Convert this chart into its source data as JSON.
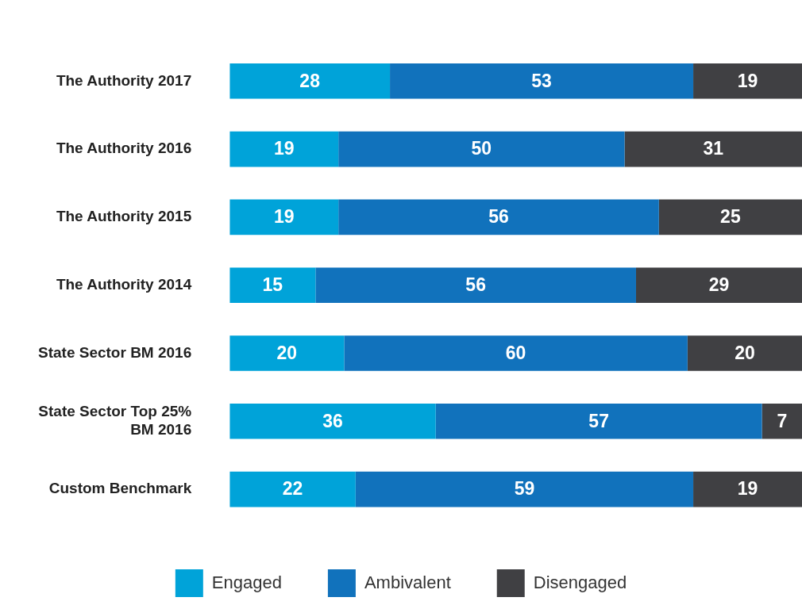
{
  "chart_data": {
    "type": "bar",
    "orientation": "horizontal",
    "stacked": true,
    "categories": [
      "The Authority 2017",
      "The Authority 2016",
      "The Authority 2015",
      "The Authority 2014",
      "State Sector BM 2016",
      "State Sector Top 25% BM 2016",
      "Custom Benchmark"
    ],
    "series": [
      {
        "name": "Engaged",
        "color": "#00a3d9",
        "values": [
          28,
          19,
          19,
          15,
          20,
          36,
          22
        ]
      },
      {
        "name": "Ambivalent",
        "color": "#1172bc",
        "values": [
          53,
          50,
          56,
          56,
          60,
          57,
          59
        ]
      },
      {
        "name": "Disengaged",
        "color": "#404043",
        "values": [
          19,
          31,
          25,
          29,
          20,
          7,
          19
        ]
      }
    ],
    "xlim": [
      0,
      100
    ],
    "tick_labels": "y",
    "grid": false,
    "legend": "bottom",
    "data_labels": true
  }
}
